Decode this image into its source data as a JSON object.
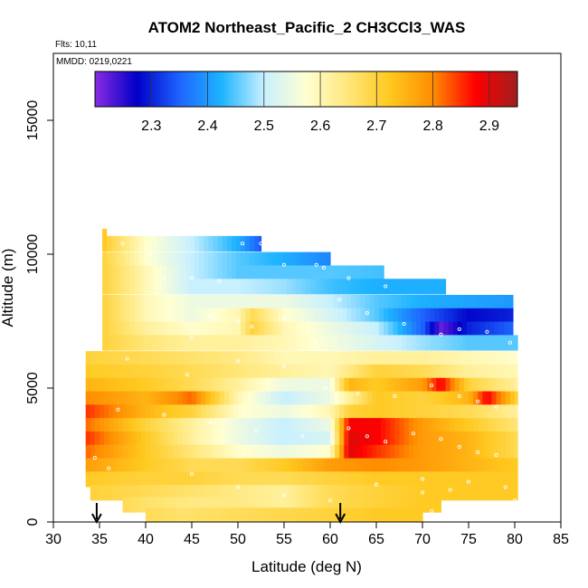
{
  "chart_data": {
    "type": "heatmap",
    "title": "ATOM2 Northeast_Pacific_2 CH3CCl3_WAS",
    "flights_label": "Flts: 10,11",
    "dates_label": "MMDD: 0219,0221",
    "xlabel": "Latitude (deg N)",
    "ylabel": "Altitude (m)",
    "xlim": [
      30,
      85
    ],
    "ylim": [
      0,
      17500
    ],
    "x_ticks": [
      "30",
      "35",
      "40",
      "45",
      "50",
      "55",
      "60",
      "65",
      "70",
      "75",
      "80",
      "85"
    ],
    "y_ticks": [
      "0",
      "5000",
      "10000",
      "15000"
    ],
    "colorbar": {
      "min": 2.2,
      "max": 2.95,
      "ticks": [
        "2.3",
        "2.4",
        "2.5",
        "2.6",
        "2.7",
        "2.8",
        "2.9"
      ],
      "colors": [
        "#8a2be2",
        "#0000c8",
        "#1e64ff",
        "#1eb4ff",
        "#c8f0ff",
        "#ffffd2",
        "#ffe678",
        "#ffc81e",
        "#ff8c00",
        "#ff0000",
        "#a01e1e"
      ]
    },
    "arrow_latitudes": [
      34.7,
      61.1
    ],
    "rows": [
      {
        "alt": 10400,
        "x": [
          35.3,
          40,
          45,
          50,
          52.5
        ],
        "v": [
          2.72,
          2.58,
          2.5,
          2.42,
          2.34
        ]
      },
      {
        "alt": 9800,
        "x": [
          35.3,
          40,
          45,
          50,
          55,
          60
        ],
        "v": [
          2.7,
          2.58,
          2.5,
          2.45,
          2.42,
          2.38
        ]
      },
      {
        "alt": 9300,
        "x": [
          35.3,
          40,
          45,
          50,
          55,
          60,
          65.8
        ],
        "v": [
          2.7,
          2.6,
          2.5,
          2.45,
          2.45,
          2.45,
          2.44
        ]
      },
      {
        "alt": 8800,
        "x": [
          35.3,
          40,
          45,
          50,
          55,
          60,
          65,
          72.5
        ],
        "v": [
          2.7,
          2.6,
          2.5,
          2.5,
          2.48,
          2.44,
          2.42,
          2.42
        ]
      },
      {
        "alt": 8200,
        "x": [
          35.3,
          40,
          45,
          50,
          55,
          60,
          65,
          70,
          79.8
        ],
        "v": [
          2.7,
          2.6,
          2.55,
          2.55,
          2.55,
          2.5,
          2.45,
          2.42,
          2.4
        ]
      },
      {
        "alt": 7700,
        "x": [
          35.3,
          40,
          45,
          50,
          51.5,
          55,
          60,
          65,
          70,
          75,
          79.8
        ],
        "v": [
          2.7,
          2.6,
          2.55,
          2.6,
          2.68,
          2.58,
          2.52,
          2.45,
          2.35,
          2.28,
          2.3
        ]
      },
      {
        "alt": 7200,
        "x": [
          35.3,
          40,
          45,
          50,
          51.5,
          55,
          60,
          65,
          70,
          72,
          75,
          79.8
        ],
        "v": [
          2.7,
          2.62,
          2.58,
          2.6,
          2.7,
          2.6,
          2.55,
          2.5,
          2.35,
          2.22,
          2.3,
          2.35
        ]
      },
      {
        "alt": 6700,
        "x": [
          35.3,
          40,
          45,
          50,
          55,
          60,
          65,
          70,
          75,
          80.3
        ],
        "v": [
          2.7,
          2.65,
          2.62,
          2.62,
          2.6,
          2.56,
          2.52,
          2.48,
          2.45,
          2.45
        ]
      },
      {
        "alt": 6100,
        "x": [
          33.5,
          40,
          45,
          50,
          55,
          60,
          65,
          70,
          75,
          80.3
        ],
        "v": [
          2.7,
          2.68,
          2.66,
          2.64,
          2.6,
          2.6,
          2.62,
          2.62,
          2.6,
          2.58
        ]
      },
      {
        "alt": 5600,
        "x": [
          33.5,
          40,
          45,
          50,
          55,
          60,
          65,
          70,
          75,
          80.3
        ],
        "v": [
          2.72,
          2.7,
          2.68,
          2.65,
          2.62,
          2.6,
          2.7,
          2.68,
          2.62,
          2.6
        ]
      },
      {
        "alt": 5100,
        "x": [
          33.5,
          40,
          45,
          50,
          55,
          60,
          62,
          65,
          70,
          72,
          75,
          80.3
        ],
        "v": [
          2.75,
          2.72,
          2.68,
          2.62,
          2.55,
          2.55,
          2.75,
          2.72,
          2.78,
          2.88,
          2.7,
          2.62
        ]
      },
      {
        "alt": 4600,
        "x": [
          33.5,
          40,
          45,
          50,
          55,
          60,
          65,
          70,
          75,
          77,
          80.3
        ],
        "v": [
          2.8,
          2.75,
          2.82,
          2.6,
          2.5,
          2.55,
          2.72,
          2.7,
          2.75,
          2.88,
          2.7
        ]
      },
      {
        "alt": 4100,
        "x": [
          33.5,
          40,
          45,
          50,
          55,
          60,
          62,
          65,
          70,
          75,
          80.3
        ],
        "v": [
          2.85,
          2.75,
          2.7,
          2.58,
          2.55,
          2.6,
          2.7,
          2.72,
          2.7,
          2.68,
          2.62
        ]
      },
      {
        "alt": 3600,
        "x": [
          33.5,
          40,
          45,
          50,
          55,
          60,
          62,
          65,
          70,
          75,
          80.3
        ],
        "v": [
          2.82,
          2.7,
          2.62,
          2.55,
          2.5,
          2.55,
          2.88,
          2.88,
          2.78,
          2.72,
          2.65
        ]
      },
      {
        "alt": 3100,
        "x": [
          33.5,
          40,
          45,
          50,
          55,
          60,
          62,
          65,
          70,
          75,
          80.3
        ],
        "v": [
          2.85,
          2.72,
          2.62,
          2.55,
          2.5,
          2.52,
          2.9,
          2.88,
          2.78,
          2.75,
          2.68
        ]
      },
      {
        "alt": 2600,
        "x": [
          33.5,
          40,
          45,
          50,
          55,
          60,
          62,
          65,
          70,
          75,
          80.3
        ],
        "v": [
          2.82,
          2.72,
          2.65,
          2.58,
          2.55,
          2.58,
          2.9,
          2.85,
          2.78,
          2.75,
          2.68
        ]
      },
      {
        "alt": 2100,
        "x": [
          33.5,
          40,
          45,
          50,
          55,
          60,
          65,
          70,
          75,
          80.3
        ],
        "v": [
          2.78,
          2.72,
          2.68,
          2.68,
          2.72,
          2.78,
          2.8,
          2.78,
          2.75,
          2.72
        ]
      },
      {
        "alt": 1600,
        "x": [
          33.5,
          40,
          45,
          50,
          55,
          60,
          65,
          70,
          75,
          80.3
        ],
        "v": [
          2.72,
          2.7,
          2.7,
          2.68,
          2.68,
          2.7,
          2.72,
          2.72,
          2.72,
          2.72
        ]
      },
      {
        "alt": 1100,
        "x": [
          34,
          40,
          45,
          50,
          55,
          60,
          65,
          70,
          75,
          80.3
        ],
        "v": [
          2.7,
          2.68,
          2.66,
          2.64,
          2.62,
          2.68,
          2.7,
          2.72,
          2.72,
          2.72
        ]
      },
      {
        "alt": 650,
        "x": [
          37.5,
          40,
          45,
          50,
          55,
          60,
          65,
          70,
          72
        ],
        "v": [
          2.68,
          2.66,
          2.64,
          2.64,
          2.62,
          2.68,
          2.7,
          2.72,
          2.72
        ]
      },
      {
        "alt": 250,
        "x": [
          40,
          43.8,
          60,
          65,
          70
        ],
        "v": [
          2.68,
          2.66,
          2.7,
          2.72,
          2.72
        ]
      }
    ],
    "samples": [
      [
        37.5,
        10400
      ],
      [
        40.5,
        10000
      ],
      [
        42,
        9100
      ],
      [
        45,
        9100
      ],
      [
        48,
        9000
      ],
      [
        50.5,
        10400
      ],
      [
        52.5,
        10400
      ],
      [
        55,
        9600
      ],
      [
        58.5,
        9600
      ],
      [
        59.3,
        9500
      ],
      [
        62,
        9100
      ],
      [
        66,
        8800
      ],
      [
        47,
        7700
      ],
      [
        50,
        7500
      ],
      [
        51.5,
        7300
      ],
      [
        55,
        7600
      ],
      [
        58.5,
        6700
      ],
      [
        61,
        8300
      ],
      [
        64,
        7800
      ],
      [
        68,
        7400
      ],
      [
        72,
        7000
      ],
      [
        74,
        7200
      ],
      [
        77,
        7100
      ],
      [
        79.5,
        6700
      ],
      [
        45,
        6900
      ],
      [
        38,
        6100
      ],
      [
        44.5,
        5500
      ],
      [
        50,
        6000
      ],
      [
        55,
        5800
      ],
      [
        59.5,
        5000
      ],
      [
        63,
        4800
      ],
      [
        67,
        4700
      ],
      [
        71,
        5100
      ],
      [
        74,
        4700
      ],
      [
        76,
        4500
      ],
      [
        78,
        4300
      ],
      [
        37,
        4200
      ],
      [
        42,
        4000
      ],
      [
        47,
        3700
      ],
      [
        52,
        3400
      ],
      [
        57,
        3200
      ],
      [
        62,
        3500
      ],
      [
        64,
        3200
      ],
      [
        66,
        3000
      ],
      [
        69,
        3300
      ],
      [
        72,
        3100
      ],
      [
        74,
        2800
      ],
      [
        76,
        2600
      ],
      [
        78,
        2500
      ],
      [
        34.5,
        2400
      ],
      [
        36,
        2000
      ],
      [
        45,
        1800
      ],
      [
        50,
        1300
      ],
      [
        55,
        1000
      ],
      [
        60,
        800
      ],
      [
        65,
        1400
      ],
      [
        70,
        1600
      ],
      [
        73,
        1200
      ],
      [
        75,
        1500
      ],
      [
        79,
        1300
      ],
      [
        80,
        800
      ],
      [
        71,
        400
      ],
      [
        70,
        1100
      ]
    ]
  }
}
